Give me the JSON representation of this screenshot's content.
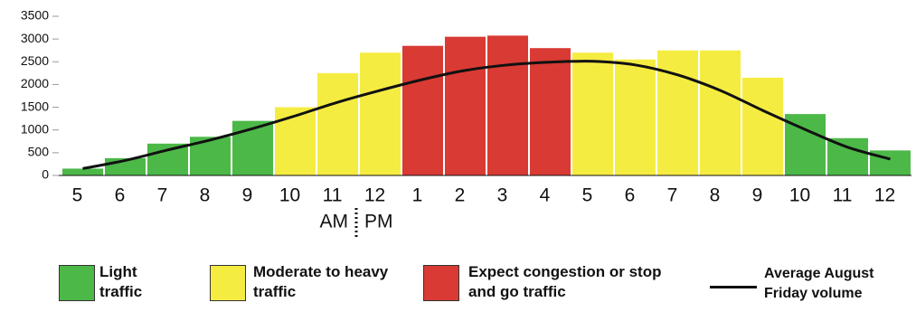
{
  "chart_data": {
    "type": "bar",
    "categories": [
      "5",
      "6",
      "7",
      "8",
      "9",
      "10",
      "11",
      "12",
      "1",
      "2",
      "3",
      "4",
      "5",
      "6",
      "7",
      "8",
      "9",
      "10",
      "11",
      "12"
    ],
    "values": [
      150,
      380,
      700,
      850,
      1200,
      1500,
      2250,
      2700,
      2850,
      3050,
      3075,
      2800,
      2700,
      2550,
      2750,
      2750,
      2150,
      1350,
      820,
      550
    ],
    "colors": [
      "#4cb848",
      "#4cb848",
      "#4cb848",
      "#4cb848",
      "#4cb848",
      "#f5ec42",
      "#f5ec42",
      "#f5ec42",
      "#d93a34",
      "#d93a34",
      "#d93a34",
      "#d93a34",
      "#f5ec42",
      "#f5ec42",
      "#f5ec42",
      "#f5ec42",
      "#f5ec42",
      "#4cb848",
      "#4cb848",
      "#4cb848"
    ],
    "line": {
      "name": "Average August Friday volume",
      "color": "#111111",
      "values": [
        150,
        330,
        560,
        780,
        1030,
        1310,
        1610,
        1870,
        2110,
        2310,
        2430,
        2490,
        2510,
        2430,
        2210,
        1870,
        1430,
        1010,
        620,
        360
      ]
    },
    "legend": [
      {
        "label": "Light traffic",
        "color": "#4cb848"
      },
      {
        "label": "Moderate to heavy traffic",
        "color": "#f5ec42"
      },
      {
        "label": "Expect congestion or stop and go traffic",
        "color": "#d93a34"
      }
    ],
    "annotations": [
      "AM",
      "PM"
    ],
    "ylim": [
      0,
      3500
    ],
    "yticks": [
      0,
      500,
      1000,
      1500,
      2000,
      2500,
      3000,
      3500
    ]
  }
}
